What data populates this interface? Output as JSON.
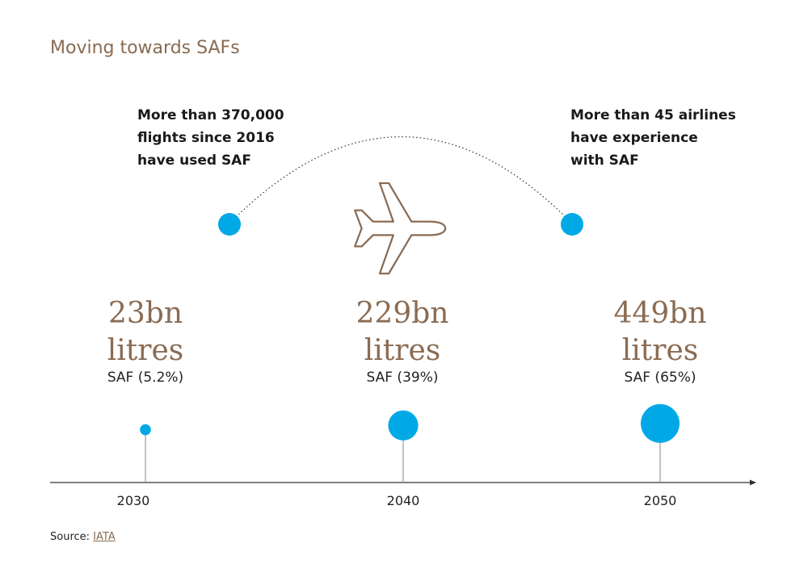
{
  "title": "Moving towards SAFs",
  "notes": {
    "left": [
      "More than 370,000",
      "flights since 2016",
      "have used SAF"
    ],
    "right": [
      "More than 45 airlines",
      "have experience",
      "with SAF"
    ]
  },
  "milestones": [
    {
      "year": "2030",
      "volume_line1": "23bn",
      "volume_line2": "litres",
      "share_label": "SAF (5.2%)",
      "saf_share_pct": 5.2
    },
    {
      "year": "2040",
      "volume_line1": "229bn",
      "volume_line2": "litres",
      "share_label": "SAF (39%)",
      "saf_share_pct": 39
    },
    {
      "year": "2050",
      "volume_line1": "449bn",
      "volume_line2": "litres",
      "share_label": "SAF (65%)",
      "saf_share_pct": 65
    }
  ],
  "source": {
    "prefix": "Source: ",
    "link_text": "IATA"
  },
  "colors": {
    "accent_blue": "#00a9e6",
    "brown": "#8a6b52",
    "axis": "#333333",
    "stem": "#9a9a9a"
  },
  "icons": {
    "plane": "airplane-outline-icon"
  }
}
